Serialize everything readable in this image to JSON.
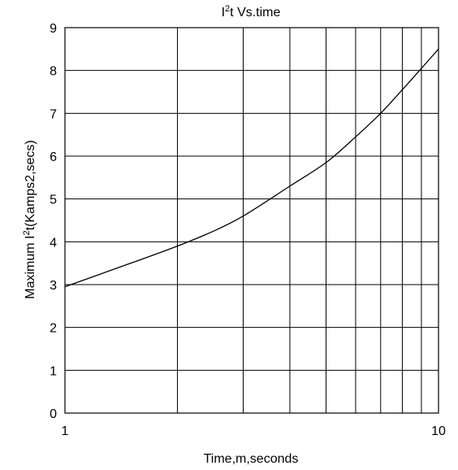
{
  "chart_data": {
    "type": "line",
    "title": {
      "base": "I",
      "sup": "2",
      "rest": "t  Vs.time"
    },
    "xlabel": "Time,m,seconds",
    "ylabel": {
      "base": "Maximum I",
      "sup": "2",
      "rest": "t(Kamps2,secs)"
    },
    "x_scale": "log",
    "xlim": [
      1,
      10
    ],
    "ylim": [
      0,
      9
    ],
    "x_tick_labels": [
      "1",
      "10"
    ],
    "y_tick_labels": [
      "0",
      "1",
      "2",
      "3",
      "4",
      "5",
      "6",
      "7",
      "8",
      "9"
    ],
    "grid": true,
    "legend": "none",
    "line_color": "#000000",
    "series": [
      {
        "x": [
          1,
          1.5,
          2,
          2.5,
          3,
          4,
          5,
          6,
          7,
          8,
          9,
          10
        ],
        "values": [
          2.95,
          3.5,
          3.9,
          4.25,
          4.6,
          5.3,
          5.85,
          6.45,
          7.0,
          7.55,
          8.05,
          8.5
        ]
      }
    ]
  }
}
